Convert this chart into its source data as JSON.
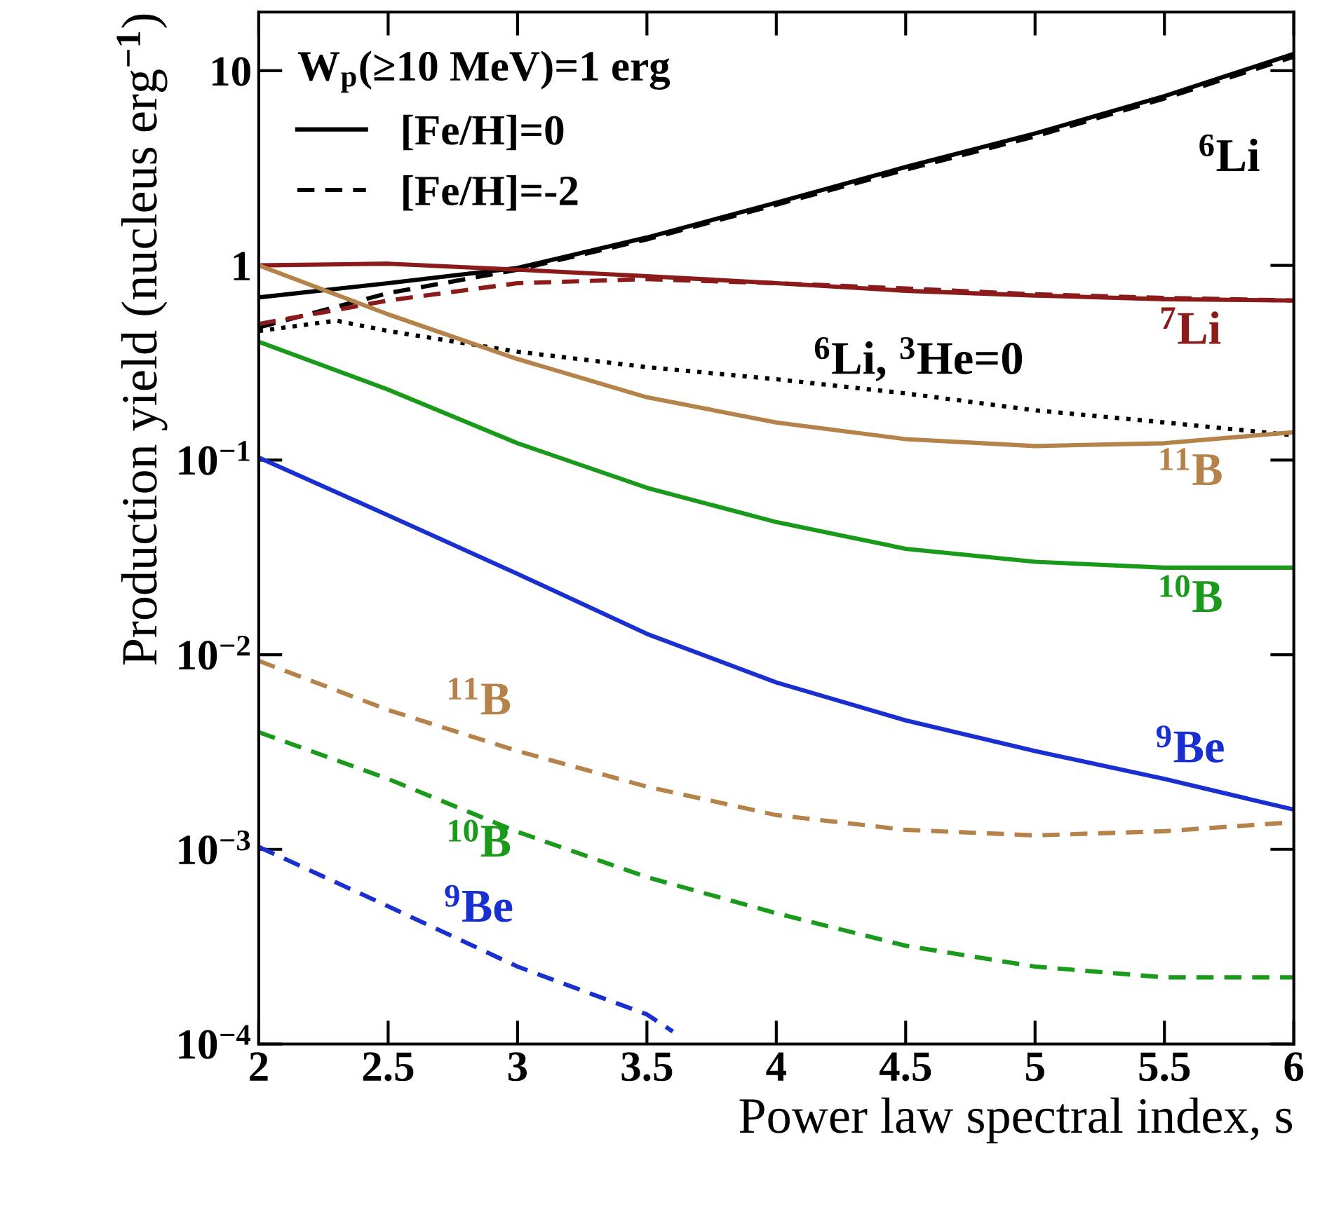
{
  "chart_data": {
    "type": "line",
    "xlabel": "Power law spectral index, s",
    "ylabel": "Production yield (nucleus erg$^{−1}$)",
    "legend_title": "W$_{p}$(≥10 MeV)=1 erg",
    "legend": "top left",
    "log": "y",
    "grid": false,
    "marker": "none",
    "xlim": [
      2,
      6
    ],
    "xticks": [
      2,
      2.5,
      3,
      3.5,
      4,
      4.5,
      5,
      5.5,
      6
    ],
    "ylim": [
      0.0001,
      20
    ],
    "yticks": [
      {
        "value": 0.0001,
        "label": "10$^{−4}$"
      },
      {
        "value": 0.001,
        "label": "10$^{−3}$"
      },
      {
        "value": 0.01,
        "label": "10$^{−2}$"
      },
      {
        "value": 0.1,
        "label": "10$^{−1}$"
      },
      1,
      10
    ],
    "series": [
      {
        "name": "[Fe/H]=0",
        "color": "#000000",
        "line_style": "solid",
        "x": [
          2,
          2.5,
          3,
          3.5,
          4,
          4.5,
          5,
          5.5,
          6
        ],
        "values": [
          0.685,
          0.81,
          0.97,
          1.39,
          2.1,
          3.2,
          4.76,
          7.4,
          12.2
        ]
      },
      {
        "name": "[Fe/H]=-2",
        "color": "#000000",
        "line_style": "dashed",
        "x": [
          2,
          2.5,
          3,
          3.5,
          4,
          4.5,
          5,
          5.5,
          6
        ],
        "values": [
          0.48,
          0.72,
          0.95,
          1.36,
          2.05,
          3.1,
          4.6,
          7.2,
          11.8
        ]
      },
      {
        "name": "$^{7}$Li",
        "color": "#8b1a1a",
        "line_style": "solid",
        "x": [
          2,
          2.5,
          3,
          3.5,
          4,
          4.5,
          5,
          5.5,
          6
        ],
        "values": [
          1.0,
          1.02,
          0.95,
          0.88,
          0.81,
          0.74,
          0.7,
          0.67,
          0.66
        ]
      },
      {
        "color": "#8b1a1a",
        "line_style": "dashed",
        "x": [
          2,
          2.5,
          3,
          3.5,
          4,
          4.5,
          5,
          5.5,
          6
        ],
        "values": [
          0.5,
          0.66,
          0.81,
          0.85,
          0.81,
          0.76,
          0.71,
          0.68,
          0.66
        ]
      },
      {
        "name": "$^{6}$Li, $^{3}$He=0",
        "color": "#000000",
        "line_style": "dotted",
        "x": [
          2,
          2.3,
          2.5,
          3,
          3.5,
          4,
          4.5,
          5,
          5.5,
          6
        ],
        "values": [
          0.46,
          0.52,
          0.46,
          0.36,
          0.3,
          0.26,
          0.22,
          0.18,
          0.156,
          0.134
        ]
      },
      {
        "name": "$^{11}$B",
        "color": "#b5834a",
        "line_style": "solid",
        "x": [
          2,
          2.5,
          3,
          3.5,
          4,
          4.5,
          5,
          5.5,
          6
        ],
        "values": [
          1.0,
          0.56,
          0.33,
          0.21,
          0.156,
          0.128,
          0.118,
          0.122,
          0.139
        ]
      },
      {
        "name": "$^{10}$B",
        "color": "#1a9a1a",
        "line_style": "solid",
        "x": [
          2,
          2.5,
          3,
          3.5,
          4,
          4.5,
          5,
          5.5,
          6
        ],
        "values": [
          0.405,
          0.23,
          0.122,
          0.072,
          0.048,
          0.035,
          0.03,
          0.028,
          0.028
        ]
      },
      {
        "name": "$^{9}$Be",
        "color": "#1a2fd0",
        "line_style": "solid",
        "x": [
          2,
          2.5,
          3,
          3.5,
          4,
          4.5,
          5,
          5.5,
          6
        ],
        "values": [
          0.103,
          0.052,
          0.026,
          0.0128,
          0.0072,
          0.0046,
          0.0032,
          0.0023,
          0.0016
        ]
      },
      {
        "name": "$^{11}$B",
        "color": "#b5834a",
        "line_style": "dashed",
        "x": [
          2,
          2.5,
          3,
          3.5,
          4,
          4.5,
          5,
          5.5,
          6
        ],
        "values": [
          0.0093,
          0.0052,
          0.0032,
          0.0021,
          0.0015,
          0.00126,
          0.00118,
          0.00124,
          0.00138
        ]
      },
      {
        "name": "$^{10}$B",
        "color": "#1a9a1a",
        "line_style": "dashed",
        "x": [
          2,
          2.5,
          3,
          3.5,
          4,
          4.5,
          5,
          5.5,
          6
        ],
        "values": [
          0.004,
          0.0023,
          0.00123,
          0.00072,
          0.00047,
          0.00032,
          0.00025,
          0.00022,
          0.00022
        ]
      },
      {
        "name": "$^{9}$Be",
        "color": "#1a2fd0",
        "line_style": "dashed",
        "x": [
          2,
          2.5,
          3,
          3.5,
          3.6
        ],
        "values": [
          0.00103,
          0.00051,
          0.00025,
          0.000142,
          0.000116
        ]
      }
    ],
    "annotations": [
      "$^{6}$Li"
    ]
  }
}
